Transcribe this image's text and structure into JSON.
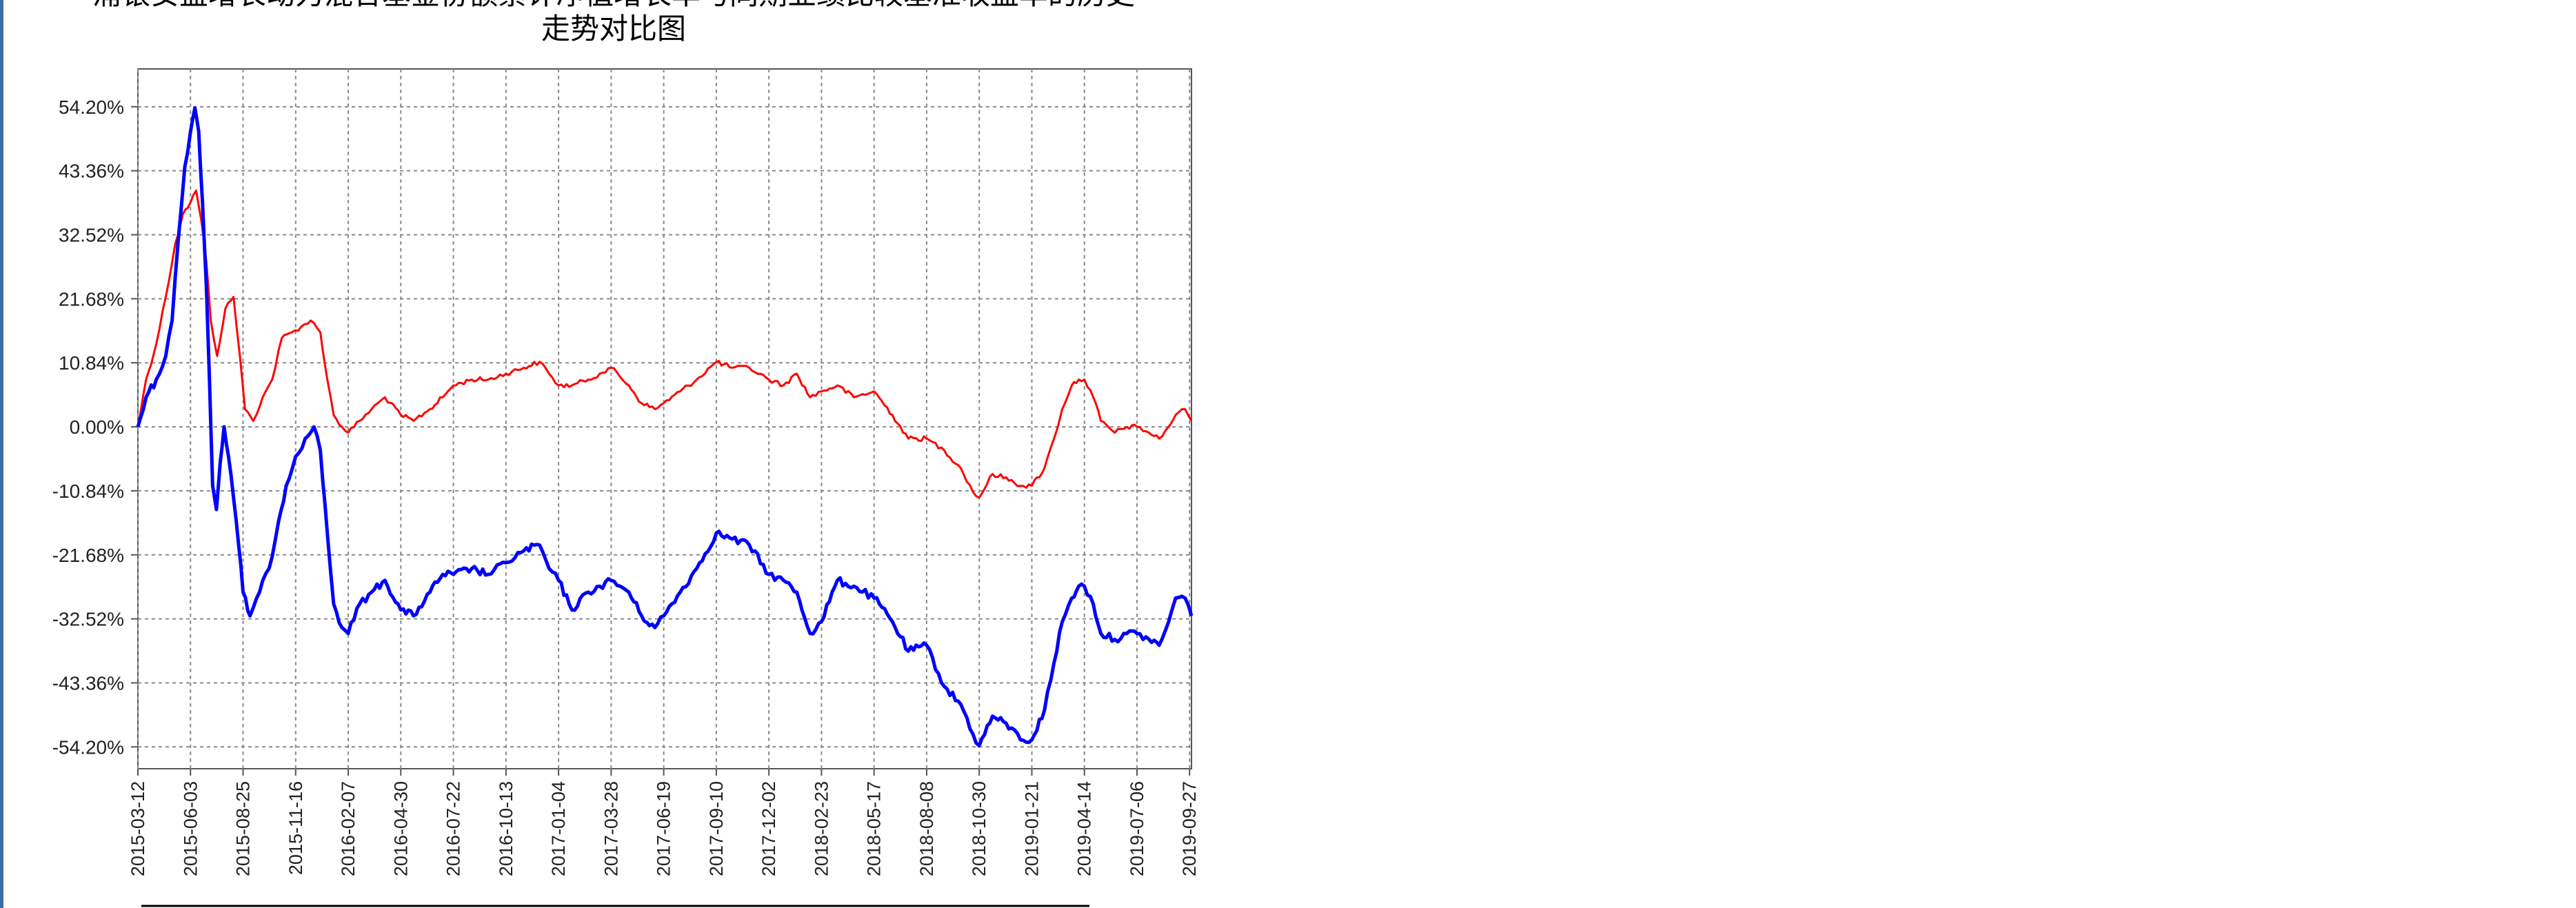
{
  "chart_data": {
    "type": "line",
    "title_lines": [
      "浦银安盛增长动力混合基金份额累计净值增长率与同期业绩比较基准收益率的历史",
      "走势对比图"
    ],
    "xlabel": "",
    "ylabel": "",
    "ylim": [
      -57.9,
      60.6
    ],
    "y_ticks": [
      54.2,
      43.36,
      32.52,
      21.68,
      10.84,
      0.0,
      -10.84,
      -21.68,
      -32.52,
      -43.36,
      -54.2
    ],
    "y_tick_labels": [
      "54.20%",
      "43.36%",
      "32.52%",
      "21.68%",
      "10.84%",
      "0.00%",
      "-10.84%",
      "-21.68%",
      "-32.52%",
      "-43.36%",
      "-54.20%"
    ],
    "x_range": [
      "2015-03-12",
      "2019-09-30"
    ],
    "x_ticks": [
      "2015-03-12",
      "2015-06-03",
      "2015-08-25",
      "2015-11-16",
      "2016-02-07",
      "2016-04-30",
      "2016-07-22",
      "2016-10-13",
      "2017-01-04",
      "2017-03-28",
      "2017-06-19",
      "2017-09-10",
      "2017-12-02",
      "2018-02-23",
      "2018-05-17",
      "2018-08-08",
      "2018-10-30",
      "2019-01-21",
      "2019-04-14",
      "2019-07-06",
      "2019-09-27"
    ],
    "grid": true,
    "legend": "bottom",
    "series": [
      {
        "color": "#ff0000",
        "points": [
          [
            "2015-03-12",
            0
          ],
          [
            "2015-03-25",
            8
          ],
          [
            "2015-04-10",
            14
          ],
          [
            "2015-04-25",
            22
          ],
          [
            "2015-05-10",
            31
          ],
          [
            "2015-05-22",
            36
          ],
          [
            "2015-06-03",
            38
          ],
          [
            "2015-06-12",
            40
          ],
          [
            "2015-06-20",
            35
          ],
          [
            "2015-06-28",
            28
          ],
          [
            "2015-07-05",
            18
          ],
          [
            "2015-07-15",
            12
          ],
          [
            "2015-07-28",
            20
          ],
          [
            "2015-08-10",
            22
          ],
          [
            "2015-08-20",
            12
          ],
          [
            "2015-08-28",
            3
          ],
          [
            "2015-09-10",
            1
          ],
          [
            "2015-09-25",
            5
          ],
          [
            "2015-10-10",
            8
          ],
          [
            "2015-10-25",
            15
          ],
          [
            "2015-11-10",
            16
          ],
          [
            "2015-11-25",
            17
          ],
          [
            "2015-12-10",
            18
          ],
          [
            "2015-12-25",
            16
          ],
          [
            "2016-01-05",
            8
          ],
          [
            "2016-01-15",
            2
          ],
          [
            "2016-01-28",
            0
          ],
          [
            "2016-02-07",
            -1
          ],
          [
            "2016-02-25",
            1
          ],
          [
            "2016-03-15",
            3
          ],
          [
            "2016-04-05",
            5
          ],
          [
            "2016-04-30",
            2
          ],
          [
            "2016-05-20",
            1
          ],
          [
            "2016-06-15",
            3
          ],
          [
            "2016-07-05",
            5
          ],
          [
            "2016-07-22",
            7
          ],
          [
            "2016-08-20",
            8
          ],
          [
            "2016-09-15",
            8
          ],
          [
            "2016-10-13",
            9
          ],
          [
            "2016-11-10",
            10
          ],
          [
            "2016-12-05",
            11
          ],
          [
            "2016-12-20",
            9
          ],
          [
            "2017-01-04",
            7
          ],
          [
            "2017-01-25",
            7
          ],
          [
            "2017-02-20",
            8
          ],
          [
            "2017-03-10",
            9
          ],
          [
            "2017-03-28",
            10
          ],
          [
            "2017-04-25",
            7
          ],
          [
            "2017-05-15",
            4
          ],
          [
            "2017-06-05",
            3
          ],
          [
            "2017-06-19",
            4
          ],
          [
            "2017-07-15",
            6
          ],
          [
            "2017-08-10",
            8
          ],
          [
            "2017-09-10",
            11
          ],
          [
            "2017-10-05",
            10
          ],
          [
            "2017-11-01",
            10
          ],
          [
            "2017-12-02",
            8
          ],
          [
            "2017-12-25",
            7
          ],
          [
            "2018-01-15",
            9
          ],
          [
            "2018-02-05",
            5
          ],
          [
            "2018-02-23",
            6
          ],
          [
            "2018-03-20",
            7
          ],
          [
            "2018-04-15",
            5
          ],
          [
            "2018-05-17",
            6
          ],
          [
            "2018-06-15",
            2
          ],
          [
            "2018-07-10",
            -2
          ],
          [
            "2018-08-08",
            -2
          ],
          [
            "2018-09-05",
            -4
          ],
          [
            "2018-10-01",
            -7
          ],
          [
            "2018-10-20",
            -11
          ],
          [
            "2018-10-30",
            -12
          ],
          [
            "2018-11-20",
            -8
          ],
          [
            "2018-12-20",
            -9
          ],
          [
            "2019-01-03",
            -10
          ],
          [
            "2019-01-21",
            -10
          ],
          [
            "2019-02-10",
            -7
          ],
          [
            "2019-02-25",
            -2
          ],
          [
            "2019-03-10",
            3
          ],
          [
            "2019-03-25",
            7
          ],
          [
            "2019-04-05",
            8
          ],
          [
            "2019-04-14",
            8
          ],
          [
            "2019-04-28",
            5
          ],
          [
            "2019-05-10",
            1
          ],
          [
            "2019-06-01",
            -1
          ],
          [
            "2019-06-20",
            0
          ],
          [
            "2019-07-06",
            0
          ],
          [
            "2019-07-25",
            -1
          ],
          [
            "2019-08-10",
            -2
          ],
          [
            "2019-08-25",
            0
          ],
          [
            "2019-09-05",
            2
          ],
          [
            "2019-09-20",
            3
          ],
          [
            "2019-09-30",
            1
          ]
        ]
      },
      {
        "color": "#0000ff",
        "points": [
          [
            "2015-03-12",
            0
          ],
          [
            "2015-03-25",
            5
          ],
          [
            "2015-04-10",
            8
          ],
          [
            "2015-04-25",
            12
          ],
          [
            "2015-05-05",
            18
          ],
          [
            "2015-05-15",
            32
          ],
          [
            "2015-05-25",
            44
          ],
          [
            "2015-06-03",
            50
          ],
          [
            "2015-06-10",
            54
          ],
          [
            "2015-06-16",
            50
          ],
          [
            "2015-06-22",
            38
          ],
          [
            "2015-06-28",
            24
          ],
          [
            "2015-07-03",
            8
          ],
          [
            "2015-07-08",
            -10
          ],
          [
            "2015-07-14",
            -14
          ],
          [
            "2015-07-20",
            -6
          ],
          [
            "2015-07-26",
            0
          ],
          [
            "2015-08-02",
            -5
          ],
          [
            "2015-08-10",
            -12
          ],
          [
            "2015-08-18",
            -20
          ],
          [
            "2015-08-25",
            -28
          ],
          [
            "2015-09-05",
            -32
          ],
          [
            "2015-09-20",
            -28
          ],
          [
            "2015-10-05",
            -24
          ],
          [
            "2015-10-20",
            -16
          ],
          [
            "2015-11-01",
            -10
          ],
          [
            "2015-11-16",
            -5
          ],
          [
            "2015-12-01",
            -2
          ],
          [
            "2015-12-15",
            0
          ],
          [
            "2015-12-25",
            -4
          ],
          [
            "2016-01-05",
            -18
          ],
          [
            "2016-01-15",
            -30
          ],
          [
            "2016-01-28",
            -34
          ],
          [
            "2016-02-07",
            -35
          ],
          [
            "2016-02-25",
            -30
          ],
          [
            "2016-03-15",
            -28
          ],
          [
            "2016-04-05",
            -26
          ],
          [
            "2016-04-30",
            -31
          ],
          [
            "2016-05-20",
            -32
          ],
          [
            "2016-06-15",
            -28
          ],
          [
            "2016-07-05",
            -25
          ],
          [
            "2016-07-22",
            -25
          ],
          [
            "2016-08-20",
            -24
          ],
          [
            "2016-09-15",
            -25
          ],
          [
            "2016-10-13",
            -23
          ],
          [
            "2016-11-10",
            -21
          ],
          [
            "2016-12-05",
            -20
          ],
          [
            "2016-12-20",
            -24
          ],
          [
            "2017-01-04",
            -26
          ],
          [
            "2017-01-25",
            -31
          ],
          [
            "2017-02-20",
            -28
          ],
          [
            "2017-03-10",
            -27
          ],
          [
            "2017-03-28",
            -26
          ],
          [
            "2017-04-25",
            -28
          ],
          [
            "2017-05-15",
            -32
          ],
          [
            "2017-06-05",
            -34
          ],
          [
            "2017-06-19",
            -32
          ],
          [
            "2017-07-15",
            -28
          ],
          [
            "2017-08-10",
            -24
          ],
          [
            "2017-09-10",
            -18
          ],
          [
            "2017-10-05",
            -19
          ],
          [
            "2017-11-01",
            -20
          ],
          [
            "2017-12-02",
            -25
          ],
          [
            "2017-12-25",
            -26
          ],
          [
            "2018-01-15",
            -28
          ],
          [
            "2018-02-05",
            -35
          ],
          [
            "2018-02-23",
            -33
          ],
          [
            "2018-03-20",
            -26
          ],
          [
            "2018-04-15",
            -27
          ],
          [
            "2018-05-17",
            -29
          ],
          [
            "2018-06-15",
            -33
          ],
          [
            "2018-07-10",
            -38
          ],
          [
            "2018-08-08",
            -37
          ],
          [
            "2018-09-05",
            -44
          ],
          [
            "2018-10-01",
            -47
          ],
          [
            "2018-10-20",
            -52
          ],
          [
            "2018-10-30",
            -54
          ],
          [
            "2018-11-20",
            -49
          ],
          [
            "2018-12-20",
            -51
          ],
          [
            "2019-01-03",
            -53
          ],
          [
            "2019-01-21",
            -53
          ],
          [
            "2019-02-10",
            -48
          ],
          [
            "2019-02-25",
            -40
          ],
          [
            "2019-03-10",
            -33
          ],
          [
            "2019-03-25",
            -29
          ],
          [
            "2019-04-05",
            -27
          ],
          [
            "2019-04-14",
            -27
          ],
          [
            "2019-04-28",
            -30
          ],
          [
            "2019-05-10",
            -35
          ],
          [
            "2019-06-01",
            -36
          ],
          [
            "2019-06-20",
            -35
          ],
          [
            "2019-07-06",
            -35
          ],
          [
            "2019-07-25",
            -36
          ],
          [
            "2019-08-10",
            -37
          ],
          [
            "2019-08-25",
            -33
          ],
          [
            "2019-09-05",
            -29
          ],
          [
            "2019-09-20",
            -29
          ],
          [
            "2019-09-30",
            -32
          ]
        ]
      }
    ]
  }
}
